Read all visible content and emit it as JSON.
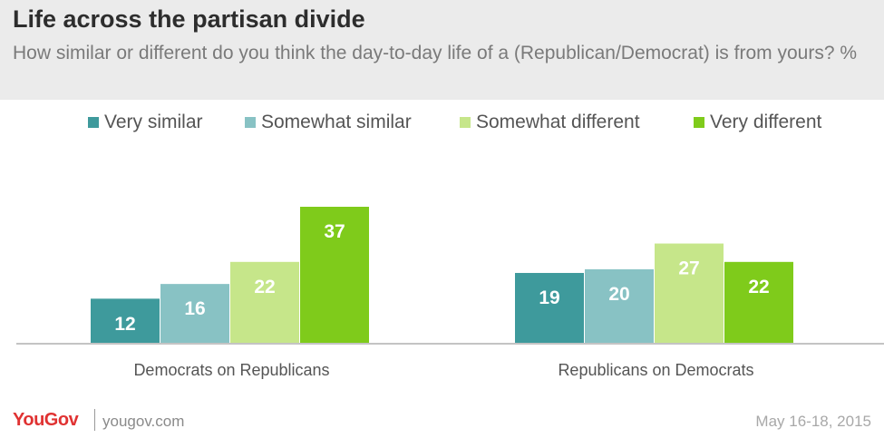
{
  "header": {
    "title": "Life across the partisan divide",
    "subtitle": "How similar or different do you think the day-to-day life of a (Republican/Democrat) is from yours? %"
  },
  "footer": {
    "logo": "YouGov",
    "site": "yougov.com",
    "date": "May 16-18, 2015"
  },
  "chart_data": {
    "type": "bar",
    "categories": [
      "Democrats on Republicans",
      "Republicans on Democrats"
    ],
    "series": [
      {
        "name": "Very similar",
        "color": "#3e9a9c",
        "values": [
          12,
          19
        ]
      },
      {
        "name": "Somewhat similar",
        "color": "#88c2c4",
        "values": [
          16,
          20
        ]
      },
      {
        "name": "Somewhat different",
        "color": "#c6e68a",
        "values": [
          22,
          27
        ]
      },
      {
        "name": "Very different",
        "color": "#7fcb1b",
        "values": [
          37,
          22
        ]
      }
    ],
    "data_labels": true,
    "ylim": [
      0,
      40
    ],
    "legend_position": "top"
  }
}
